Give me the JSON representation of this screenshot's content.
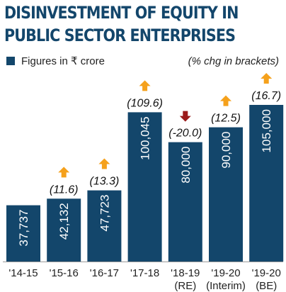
{
  "chart_data": {
    "type": "bar",
    "title": "DISINVESTMENT OF EQUITY IN PUBLIC SECTOR ENTERPRISES",
    "legend": {
      "label": "Figures in ₹ crore",
      "note": "(% chg in brackets)",
      "placement": "top-left"
    },
    "categories": [
      [
        "'14-15"
      ],
      [
        "'15-16"
      ],
      [
        "'16-17"
      ],
      [
        "'17-18"
      ],
      [
        "'18-19",
        "(RE)"
      ],
      [
        "'19-20",
        "(Interim)"
      ],
      [
        "'19-20",
        "(BE)"
      ]
    ],
    "values": [
      37737,
      42132,
      47723,
      100045,
      80000,
      90000,
      105000
    ],
    "value_labels": [
      "37,737",
      "42,132",
      "47,723",
      "100,045",
      "80,000",
      "90,000",
      "105,000"
    ],
    "pct_change": [
      null,
      "(11.6)",
      "(13.3)",
      "(109.6)",
      "(-20.0)",
      "(12.5)",
      "(16.7)"
    ],
    "direction": [
      null,
      "up",
      "up",
      "up",
      "down",
      "up",
      "up"
    ],
    "ylim": [
      0,
      105000
    ],
    "grid": false,
    "colors": {
      "bar": "#13466b",
      "up_arrow": "#f5a11c",
      "down_arrow": "#9b1b1b",
      "title": "#13466b",
      "value_label": "#ffffff",
      "baseline": "#999999"
    }
  }
}
